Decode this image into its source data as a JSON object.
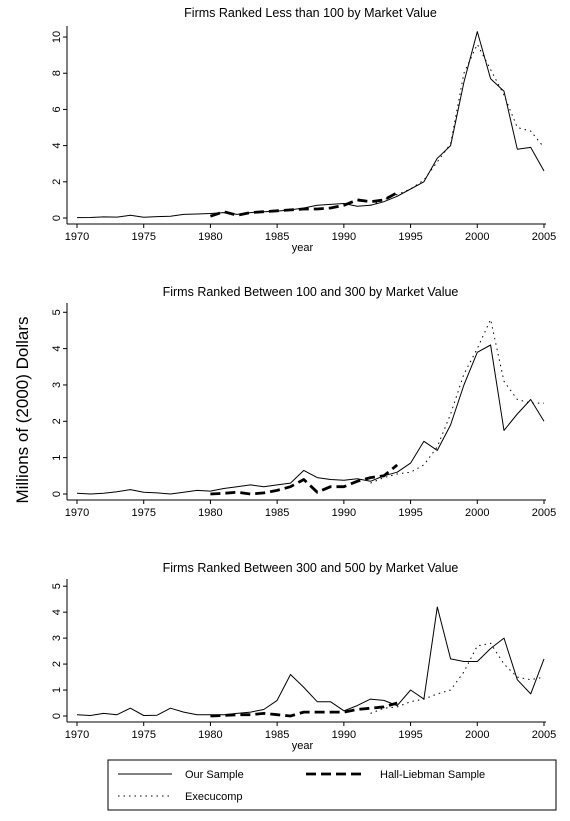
{
  "chart_data": {
    "type": "line",
    "ylabel": "Millions of (2000) Dollars",
    "legend": {
      "placement": "bottom",
      "entries": [
        "Our Sample",
        "Hall-Liebman Sample",
        "Execucomp"
      ]
    },
    "panels": [
      {
        "title": "Firms Ranked Less than 100 by Market Value",
        "xlabel": "year",
        "xlim": [
          1970,
          2005
        ],
        "ylim": [
          0,
          10.5
        ],
        "xticks": [
          1970,
          1975,
          1980,
          1985,
          1990,
          1995,
          2000,
          2005
        ],
        "yticks": [
          0,
          2,
          4,
          6,
          8,
          10
        ],
        "series": [
          {
            "name": "Our Sample",
            "style": "solid",
            "x": [
              1970,
              1971,
              1972,
              1973,
              1974,
              1975,
              1976,
              1977,
              1978,
              1979,
              1980,
              1981,
              1982,
              1983,
              1984,
              1985,
              1986,
              1987,
              1988,
              1989,
              1990,
              1991,
              1992,
              1993,
              1994,
              1995,
              1996,
              1997,
              1998,
              1999,
              2000,
              2001,
              2002,
              2003,
              2004,
              2005
            ],
            "y": [
              0.02,
              0.03,
              0.06,
              0.05,
              0.15,
              0.04,
              0.08,
              0.1,
              0.2,
              0.22,
              0.25,
              0.3,
              0.2,
              0.3,
              0.35,
              0.38,
              0.45,
              0.55,
              0.7,
              0.75,
              0.8,
              0.65,
              0.7,
              0.9,
              1.2,
              1.6,
              2.0,
              3.3,
              4.0,
              7.5,
              10.3,
              7.7,
              7.0,
              3.8,
              3.9,
              2.6
            ]
          },
          {
            "name": "Hall-Liebman Sample",
            "style": "dashed",
            "x": [
              1980,
              1981,
              1982,
              1983,
              1984,
              1985,
              1986,
              1987,
              1988,
              1989,
              1990,
              1991,
              1992,
              1993,
              1994
            ],
            "y": [
              0.1,
              0.35,
              0.15,
              0.3,
              0.35,
              0.4,
              0.45,
              0.5,
              0.5,
              0.55,
              0.7,
              1.0,
              0.9,
              1.0,
              1.4
            ]
          },
          {
            "name": "Execucomp",
            "style": "dotted",
            "x": [
              1992,
              1993,
              1994,
              1995,
              1996,
              1997,
              1998,
              1999,
              2000,
              2001,
              2002,
              2003,
              2004,
              2005
            ],
            "y": [
              0.7,
              1.0,
              1.3,
              1.6,
              2.1,
              3.1,
              4.1,
              8.0,
              9.6,
              8.2,
              6.8,
              5.0,
              4.8,
              3.9
            ]
          }
        ]
      },
      {
        "title": "Firms Ranked Between 100 and 300 by Market Value",
        "xlabel": "",
        "xlim": [
          1970,
          2005
        ],
        "ylim": [
          0,
          5.2
        ],
        "xticks": [
          1970,
          1975,
          1980,
          1985,
          1990,
          1995,
          2000,
          2005
        ],
        "yticks": [
          0,
          1,
          2,
          3,
          4,
          5
        ],
        "series": [
          {
            "name": "Our Sample",
            "style": "solid",
            "x": [
              1970,
              1971,
              1972,
              1973,
              1974,
              1975,
              1976,
              1977,
              1978,
              1979,
              1980,
              1981,
              1982,
              1983,
              1984,
              1985,
              1986,
              1987,
              1988,
              1989,
              1990,
              1991,
              1992,
              1993,
              1994,
              1995,
              1996,
              1997,
              1998,
              1999,
              2000,
              2001,
              2002,
              2003,
              2004,
              2005
            ],
            "y": [
              0.02,
              0.0,
              0.02,
              0.06,
              0.12,
              0.05,
              0.03,
              0.0,
              0.05,
              0.1,
              0.08,
              0.15,
              0.2,
              0.25,
              0.2,
              0.25,
              0.3,
              0.65,
              0.45,
              0.4,
              0.38,
              0.42,
              0.35,
              0.5,
              0.6,
              0.85,
              1.45,
              1.2,
              1.9,
              3.0,
              3.9,
              4.1,
              1.75,
              2.2,
              2.6,
              2.0
            ]
          },
          {
            "name": "Hall-Liebman Sample",
            "style": "dashed",
            "x": [
              1980,
              1981,
              1982,
              1983,
              1984,
              1985,
              1986,
              1987,
              1988,
              1989,
              1990,
              1991,
              1992,
              1993,
              1994
            ],
            "y": [
              0.0,
              0.02,
              0.05,
              0.0,
              0.03,
              0.1,
              0.2,
              0.4,
              0.05,
              0.2,
              0.2,
              0.35,
              0.45,
              0.5,
              0.8
            ]
          },
          {
            "name": "Execucomp",
            "style": "dotted",
            "x": [
              1992,
              1993,
              1994,
              1995,
              1996,
              1997,
              1998,
              1999,
              2000,
              2001,
              2002,
              2003,
              2004,
              2005
            ],
            "y": [
              0.3,
              0.45,
              0.55,
              0.6,
              0.8,
              1.3,
              2.2,
              3.3,
              4.0,
              4.8,
              3.1,
              2.6,
              2.5,
              2.5
            ]
          }
        ]
      },
      {
        "title": "Firms Ranked Between 300 and 500 by Market Value",
        "xlabel": "year",
        "xlim": [
          1970,
          2005
        ],
        "ylim": [
          0,
          5.2
        ],
        "xticks": [
          1970,
          1975,
          1980,
          1985,
          1990,
          1995,
          2000,
          2005
        ],
        "yticks": [
          0,
          1,
          2,
          3,
          4,
          5
        ],
        "series": [
          {
            "name": "Our Sample",
            "style": "solid",
            "x": [
              1970,
              1971,
              1972,
              1973,
              1974,
              1975,
              1976,
              1977,
              1978,
              1979,
              1980,
              1981,
              1982,
              1983,
              1984,
              1985,
              1986,
              1987,
              1988,
              1989,
              1990,
              1991,
              1992,
              1993,
              1994,
              1995,
              1996,
              1997,
              1998,
              1999,
              2000,
              2001,
              2002,
              2003,
              2004,
              2005
            ],
            "y": [
              0.05,
              0.02,
              0.1,
              0.05,
              0.3,
              0.02,
              0.03,
              0.3,
              0.15,
              0.05,
              0.05,
              0.05,
              0.1,
              0.15,
              0.25,
              0.6,
              1.6,
              1.1,
              0.55,
              0.55,
              0.2,
              0.4,
              0.65,
              0.6,
              0.4,
              1.0,
              0.65,
              4.2,
              2.2,
              2.1,
              2.1,
              2.6,
              3.0,
              1.4,
              0.85,
              2.2
            ]
          },
          {
            "name": "Hall-Liebman Sample",
            "style": "dashed",
            "x": [
              1980,
              1981,
              1982,
              1983,
              1984,
              1985,
              1986,
              1987,
              1988,
              1989,
              1990,
              1991,
              1992,
              1993,
              1994
            ],
            "y": [
              0.0,
              0.02,
              0.05,
              0.05,
              0.1,
              0.05,
              0.0,
              0.15,
              0.15,
              0.15,
              0.15,
              0.25,
              0.3,
              0.35,
              0.5
            ]
          },
          {
            "name": "Execucomp",
            "style": "dotted",
            "x": [
              1992,
              1993,
              1994,
              1995,
              1996,
              1997,
              1998,
              1999,
              2000,
              2001,
              2002,
              2003,
              2004,
              2005
            ],
            "y": [
              0.1,
              0.3,
              0.35,
              0.55,
              0.65,
              0.85,
              1.0,
              1.7,
              2.7,
              2.8,
              2.0,
              1.5,
              1.4,
              1.5
            ]
          }
        ]
      }
    ]
  }
}
